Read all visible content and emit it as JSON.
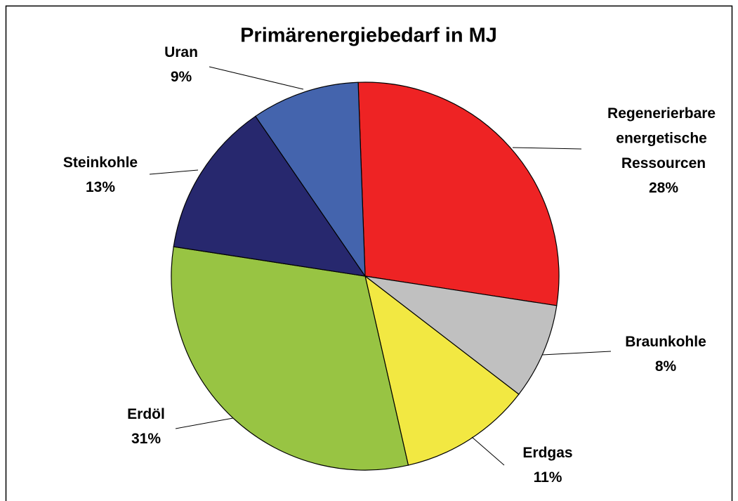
{
  "chart_data": {
    "type": "pie",
    "title": "Primärenergiebedarf in MJ",
    "categories": [
      "Regenerierbare energetische Ressourcen",
      "Braunkohle",
      "Erdgas",
      "Erdöl",
      "Steinkohle",
      "Uran"
    ],
    "values": [
      28,
      8,
      11,
      31,
      13,
      9
    ],
    "value_labels": [
      "28%",
      "8%",
      "11%",
      "31%",
      "13%",
      "9%"
    ],
    "colors": [
      "#ee2324",
      "#c0c0c0",
      "#f2e842",
      "#98c443",
      "#27286e",
      "#4464ad"
    ]
  }
}
